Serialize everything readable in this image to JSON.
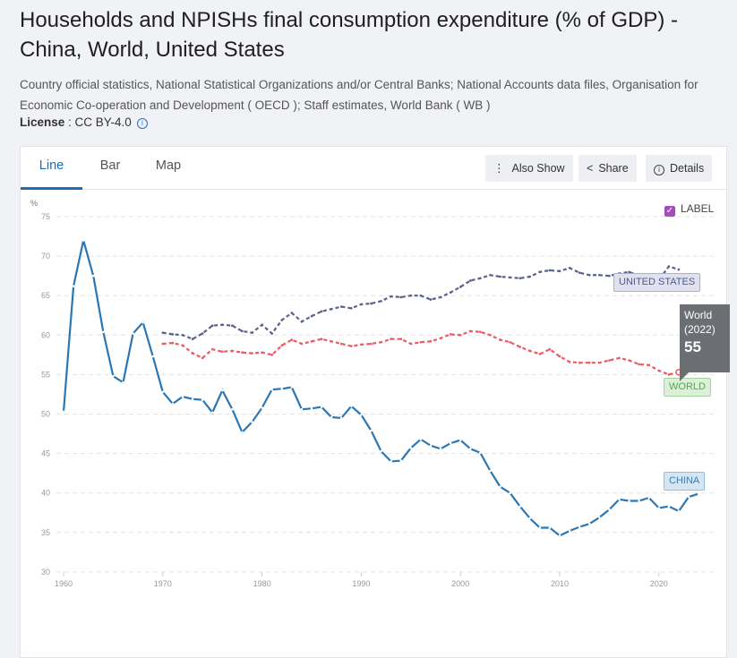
{
  "header": {
    "title": "Households and NPISHs final consumption expenditure (% of GDP) - China, World, United States",
    "source": "Country official statistics, National Statistical Organizations and/or Central Banks; National Accounts data files, Organisation for Economic Co-operation and Development ( OECD ); Staff estimates, World Bank ( WB )",
    "license_label": "License",
    "license_value": " : CC BY-4.0"
  },
  "tabs": [
    {
      "label": "Line"
    },
    {
      "label": "Bar"
    },
    {
      "label": "Map"
    }
  ],
  "toolbar": {
    "also_show": "Also Show",
    "share": "Share",
    "details": "Details"
  },
  "label_toggle": {
    "label": "LABEL",
    "checked": true
  },
  "tooltip": {
    "name": "World",
    "year": "(2022)",
    "value": "55"
  },
  "colors": {
    "china": "#2b77b3",
    "us": "#59628f",
    "world": "#ee5964",
    "accent": "#1a6fb7"
  },
  "chart_data": {
    "type": "line",
    "title": "Households and NPISHs final consumption expenditure (% of GDP)",
    "ylabel": "%",
    "xlabel": "",
    "ylim": [
      30,
      75
    ],
    "xlim": [
      1960,
      2024
    ],
    "yticks": [
      30,
      35,
      40,
      45,
      50,
      55,
      60,
      65,
      70,
      75
    ],
    "xticks": [
      1960,
      1970,
      1980,
      1990,
      2000,
      2010,
      2020
    ],
    "grid": true,
    "series": [
      {
        "name": "CHINA",
        "start": 1960,
        "values": [
          50.3,
          66.2,
          72,
          67.5,
          60.4,
          54.8,
          54,
          60.2,
          61.6,
          57.3,
          52.8,
          51.3,
          52.2,
          51.9,
          51.8,
          50.2,
          53.0,
          50.6,
          47.7,
          49.0,
          50.8,
          53.1,
          53.2,
          53.4,
          50.6,
          50.7,
          50.9,
          49.6,
          49.5,
          51.0,
          49.9,
          47.9,
          45.3,
          44.0,
          44.1,
          45.7,
          46.8,
          46.0,
          45.6,
          46.3,
          46.7,
          45.6,
          45.1,
          42.8,
          40.8,
          40.0,
          38.3,
          36.8,
          35.6,
          35.6,
          34.6,
          35.2,
          35.7,
          36.1,
          36.9,
          37.9,
          39.2,
          39.0,
          39.0,
          39.4,
          38.1,
          38.3,
          37.7,
          39.5,
          39.9
        ]
      },
      {
        "name": "UNITED STATES",
        "start": 1970,
        "values": [
          60.3,
          60.1,
          60.0,
          59.5,
          60.2,
          61.2,
          61.3,
          61.2,
          60.5,
          60.3,
          61.3,
          60.2,
          61.9,
          62.8,
          61.7,
          62.4,
          63.0,
          63.3,
          63.6,
          63.4,
          63.9,
          64.0,
          64.3,
          64.9,
          64.8,
          65.0,
          65.0,
          64.5,
          64.8,
          65.4,
          66.1,
          66.9,
          67.2,
          67.6,
          67.4,
          67.3,
          67.2,
          67.4,
          68.0,
          68.2,
          68.1,
          68.5,
          67.9,
          67.6,
          67.6,
          67.5,
          67.8,
          68.0,
          67.5,
          67.3,
          67.0,
          68.7,
          68.3
        ]
      },
      {
        "name": "WORLD",
        "start": 1970,
        "values": [
          58.9,
          59.0,
          58.7,
          57.7,
          57.1,
          58.2,
          57.9,
          58.0,
          57.8,
          57.7,
          57.8,
          57.5,
          58.7,
          59.4,
          58.9,
          59.2,
          59.5,
          59.2,
          58.9,
          58.6,
          58.8,
          58.9,
          59.1,
          59.5,
          59.5,
          58.9,
          59.1,
          59.2,
          59.6,
          60.1,
          60.0,
          60.5,
          60.4,
          60.0,
          59.4,
          59.1,
          58.5,
          58.0,
          57.6,
          58.2,
          57.3,
          56.6,
          56.5,
          56.5,
          56.5,
          56.8,
          57.1,
          56.8,
          56.3,
          56.2,
          55.5,
          55.0,
          55.3
        ]
      }
    ]
  }
}
